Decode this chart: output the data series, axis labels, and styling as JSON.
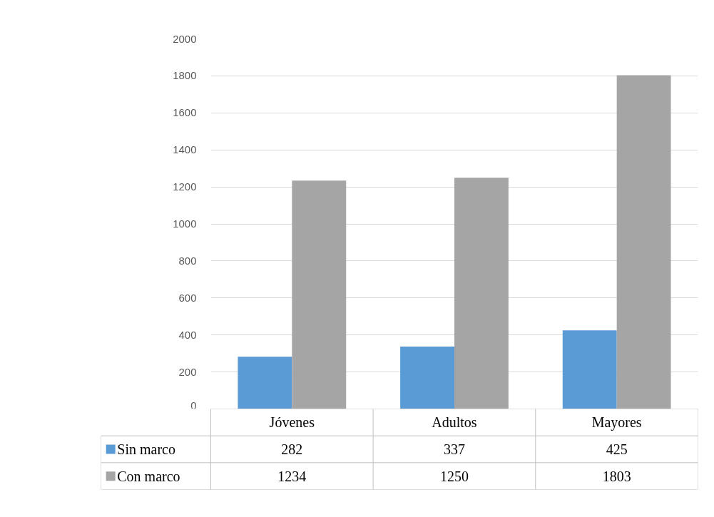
{
  "chart_data": {
    "type": "bar",
    "categories": [
      "Jóvenes",
      "Adultos",
      "Mayores"
    ],
    "series": [
      {
        "name": "Sin marco",
        "color": "#5b9bd5",
        "values": [
          282,
          337,
          425
        ]
      },
      {
        "name": "Con marco",
        "color": "#a5a5a5",
        "values": [
          1234,
          1250,
          1803
        ]
      }
    ],
    "ylim": [
      0,
      2000
    ],
    "yticks": [
      0,
      200,
      400,
      600,
      800,
      1000,
      1200,
      1400,
      1600,
      1800,
      2000
    ],
    "grid": "y",
    "legend": "bottom",
    "data_labels": true
  }
}
